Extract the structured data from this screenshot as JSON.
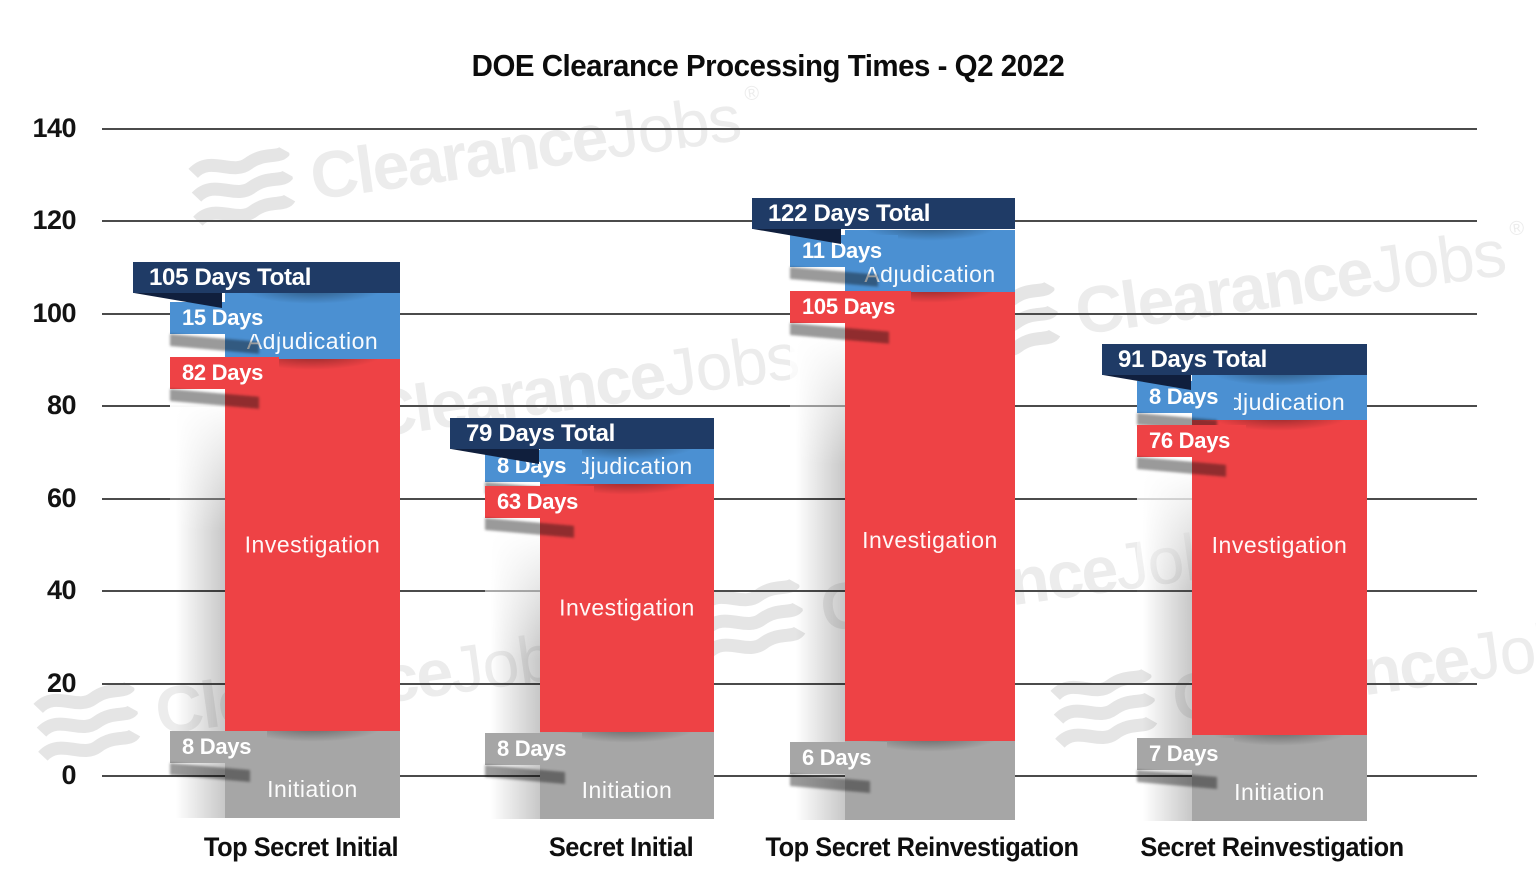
{
  "title": "DOE Clearance Processing Times - Q2 2022",
  "y_axis": {
    "tick_labels": [
      "140",
      "120",
      "100",
      "80",
      "60",
      "40",
      "20",
      "0"
    ]
  },
  "watermark": {
    "brand_bold": "Clearance",
    "brand_light": "Jobs",
    "registered": "®"
  },
  "bars": [
    {
      "category": "Top Secret Initial",
      "total_label": "105 Days Total",
      "adjudication_days": "15 Days",
      "adjudication_label": "Adjudication",
      "investigation_days": "82 Days",
      "investigation_label": "Investigation",
      "initiation_days": "8 Days",
      "initiation_label": "Initiation"
    },
    {
      "category": "Secret Initial",
      "total_label": "79 Days Total",
      "adjudication_days": "8 Days",
      "adjudication_label": "Adjudication",
      "investigation_days": "63 Days",
      "investigation_label": "Investigation",
      "initiation_days": "8 Days",
      "initiation_label": "Initiation"
    },
    {
      "category": "Top Secret Reinvestigation",
      "total_label": "122 Days Total",
      "adjudication_days": "11 Days",
      "adjudication_label": "Adjudication",
      "investigation_days": "105 Days",
      "investigation_label": "Investigation",
      "initiation_days": "6 Days",
      "initiation_label": ""
    },
    {
      "category": "Secret Reinvestigation",
      "total_label": "91 Days Total",
      "adjudication_days": "8 Days",
      "adjudication_label": "Adjudication",
      "investigation_days": "76 Days",
      "investigation_label": "Investigation",
      "initiation_days": "7 Days",
      "initiation_label": "Initiation"
    }
  ],
  "colors": {
    "navy": "#1f3b66",
    "navyfold": "#101f3d",
    "blue": "#4b90d2",
    "red": "#ee4245",
    "gray": "#a6a6a6",
    "grid": "#4b4b4b",
    "wm": "#ececec",
    "wmflag": "#e5e5e5"
  },
  "chart_data": {
    "type": "bar",
    "stacked": true,
    "title": "DOE Clearance Processing Times - Q2 2022",
    "categories": [
      "Top Secret Initial",
      "Secret Initial",
      "Top Secret Reinvestigation",
      "Secret Reinvestigation"
    ],
    "series": [
      {
        "name": "Initiation",
        "values": [
          8,
          8,
          6,
          7
        ]
      },
      {
        "name": "Investigation",
        "values": [
          82,
          63,
          105,
          76
        ]
      },
      {
        "name": "Adjudication",
        "values": [
          15,
          8,
          11,
          8
        ]
      }
    ],
    "totals_days": [
      105,
      79,
      122,
      91
    ],
    "unit": "Days",
    "xlabel": "",
    "ylabel": "",
    "ylim": [
      0,
      140
    ],
    "yticks": [
      0,
      20,
      40,
      60,
      80,
      100,
      120,
      140
    ],
    "grid": true,
    "legend_position": "none"
  }
}
